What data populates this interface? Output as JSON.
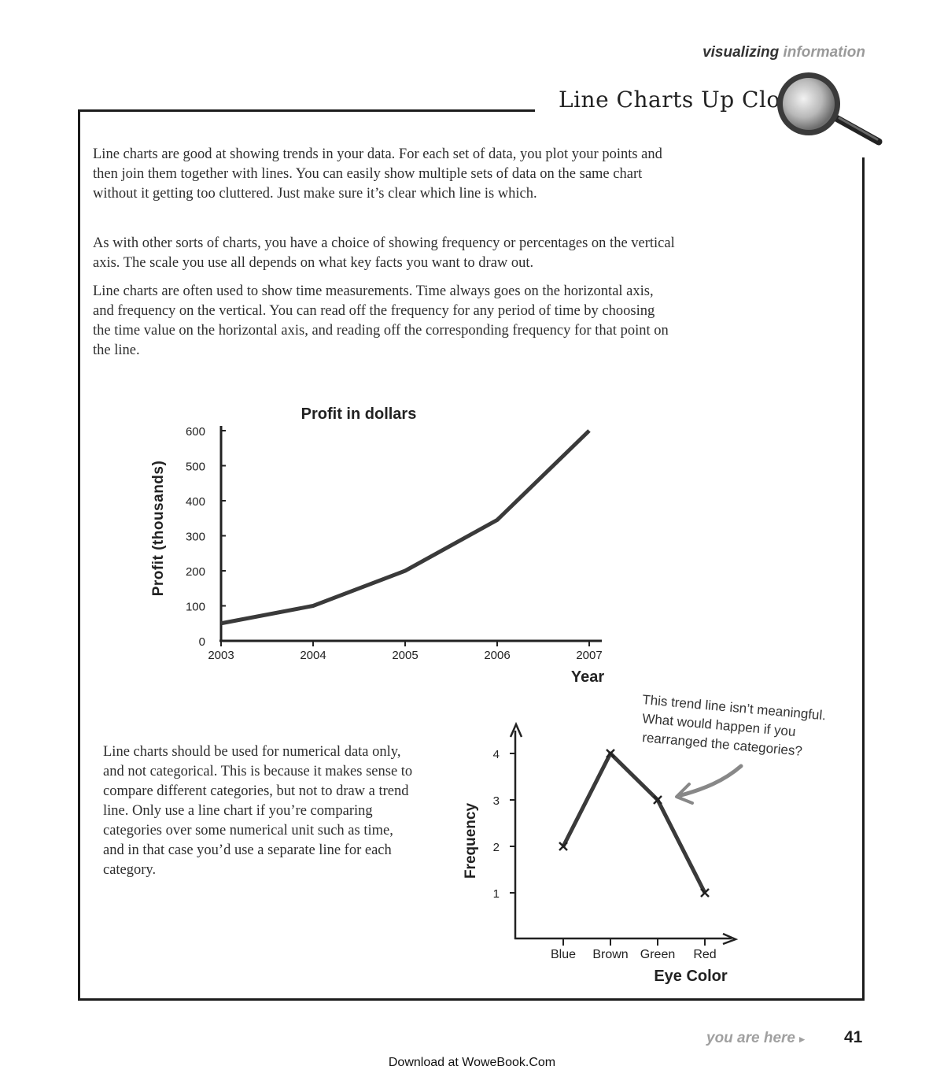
{
  "running_head": {
    "word1": "visualizing",
    "word2": "information"
  },
  "section_title": "Line Charts Up Close",
  "paragraphs": {
    "p1": "Line charts are good at showing trends in your data. For each set of data, you plot your points and then join them together with lines. You can easily show multiple sets of data on the same chart without it getting too cluttered. Just make sure it’s clear which line is which.",
    "p2": "As with other sorts of charts, you have a choice of showing frequency or percentages on the vertical axis. The scale you use all depends on what key facts you want to draw out.",
    "p3": "Line charts are often used to show time measurements. Time always goes on the horizontal axis, and frequency on the vertical. You can read off the frequency for any period of time by choosing the time value on the horizontal axis, and reading off the corresponding frequency for that point on the line.",
    "p4": "Line charts should be used for numerical data only, and not categorical. This is because it makes sense to compare different categories, but not to draw a trend line. Only use a line chart if you’re comparing categories over some numerical unit such as time, and in that case you’d use a separate line for each category."
  },
  "chart_data": [
    {
      "type": "line",
      "title": "Profit in dollars",
      "xlabel": "Year",
      "ylabel": "Profit (thousands)",
      "x": [
        2003,
        2004,
        2005,
        2006,
        2007
      ],
      "values": [
        50,
        100,
        200,
        345,
        600
      ],
      "ylim": [
        0,
        600
      ],
      "yticks": [
        0,
        100,
        200,
        300,
        400,
        500,
        600
      ],
      "xtick_labels": [
        "2003",
        "2004",
        "2005",
        "2006",
        "2007"
      ],
      "ytick_labels": [
        "0",
        "100",
        "200",
        "300",
        "400",
        "500",
        "600"
      ],
      "grid": false,
      "line_color": "#3a3a3a"
    },
    {
      "type": "line",
      "title": "",
      "xlabel": "Eye Color",
      "ylabel": "Frequency",
      "categories": [
        "Blue",
        "Brown",
        "Green",
        "Red"
      ],
      "values": [
        2,
        4,
        3,
        1
      ],
      "ylim": [
        0,
        4.5
      ],
      "yticks": [
        1,
        2,
        3,
        4
      ],
      "ytick_labels": [
        "1",
        "2",
        "3",
        "4"
      ],
      "grid": false,
      "marker": "x",
      "line_color": "#3a3a3a",
      "annotation": {
        "lines": [
          "This trend line isn’t meaningful.",
          "What would happen if you",
          "rearranged the categories?"
        ],
        "points_to": "Green"
      }
    }
  ],
  "footer": {
    "you_are_here": "you are here",
    "arrow_icon": "triangle-right-icon",
    "page_number": "41",
    "download": "Download at WoweBook.Com"
  }
}
